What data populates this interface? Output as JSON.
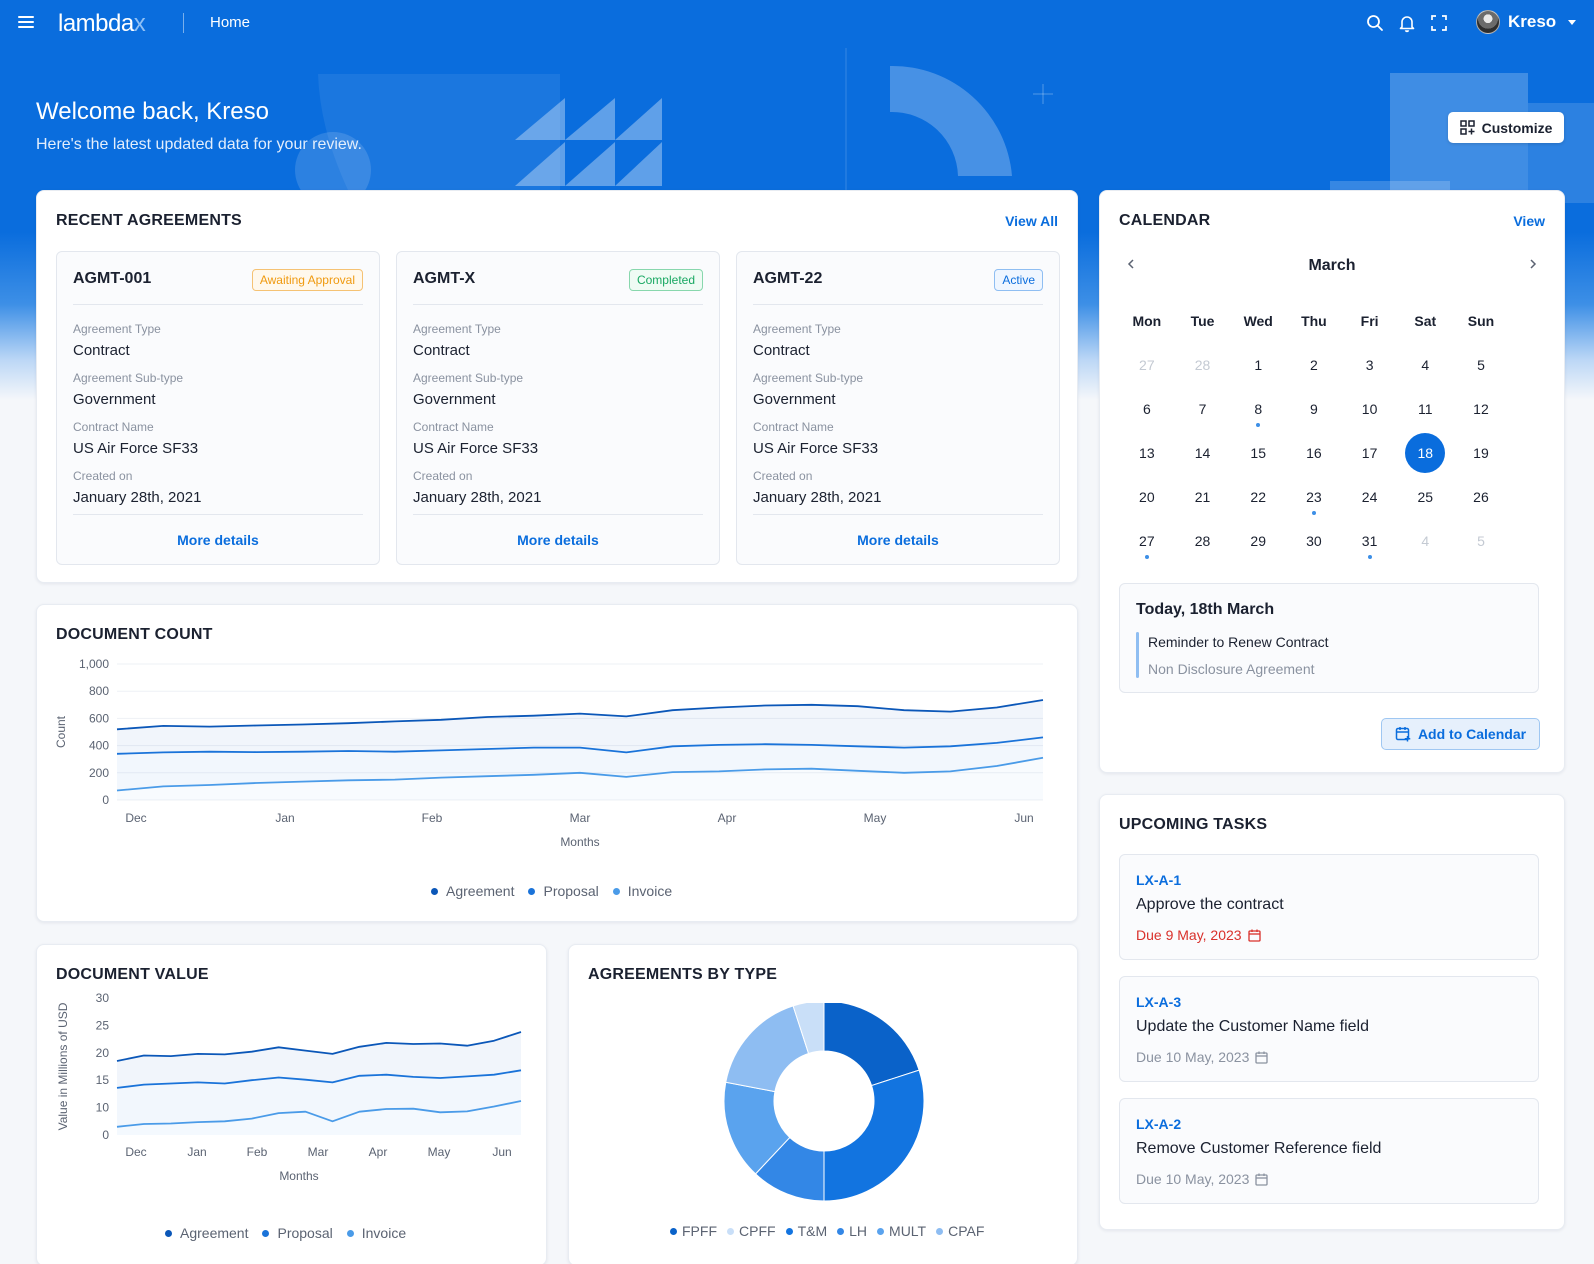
{
  "header": {
    "logo_main": "lambda",
    "logo_accent": "x",
    "nav_home": "Home",
    "user_name": "Kreso",
    "icons": [
      "menu-icon",
      "search-icon",
      "bell-icon",
      "fullscreen-icon",
      "avatar",
      "chevron-down-icon"
    ]
  },
  "welcome": {
    "title": "Welcome back, Kreso",
    "subtitle": "Here's the latest updated data for your review.",
    "customize_label": "Customize"
  },
  "recent_agreements": {
    "title": "RECENT AGREEMENTS",
    "view_all": "View All",
    "field_labels": {
      "type": "Agreement Type",
      "subtype": "Agreement Sub-type",
      "contract_name": "Contract Name",
      "created": "Created on"
    },
    "more_details": "More details",
    "items": [
      {
        "id": "AGMT-001",
        "status": "Awaiting Approval",
        "type": "Contract",
        "subtype": "Government",
        "contract_name": "US Air Force SF33",
        "created": "January 28th, 2021"
      },
      {
        "id": "AGMT-X",
        "status": "Completed",
        "type": "Contract",
        "subtype": "Government",
        "contract_name": "US Air Force SF33",
        "created": "January 28th, 2021"
      },
      {
        "id": "AGMT-22",
        "status": "Active",
        "type": "Contract",
        "subtype": "Government",
        "contract_name": "US Air Force SF33",
        "created": "January 28th, 2021"
      }
    ]
  },
  "calendar": {
    "title": "CALENDAR",
    "view": "View",
    "month": "March",
    "weekdays": [
      "Mon",
      "Tue",
      "Wed",
      "Thu",
      "Fri",
      "Sat",
      "Sun"
    ],
    "weeks": [
      [
        {
          "d": "27",
          "m": true
        },
        {
          "d": "28",
          "m": true
        },
        {
          "d": "1"
        },
        {
          "d": "2"
        },
        {
          "d": "3"
        },
        {
          "d": "4"
        },
        {
          "d": "5"
        }
      ],
      [
        {
          "d": "6"
        },
        {
          "d": "7"
        },
        {
          "d": "8",
          "ev": true
        },
        {
          "d": "9"
        },
        {
          "d": "10"
        },
        {
          "d": "11"
        },
        {
          "d": "12"
        }
      ],
      [
        {
          "d": "13"
        },
        {
          "d": "14"
        },
        {
          "d": "15"
        },
        {
          "d": "16"
        },
        {
          "d": "17"
        },
        {
          "d": "18",
          "today": true
        },
        {
          "d": "19"
        }
      ],
      [
        {
          "d": "20"
        },
        {
          "d": "21"
        },
        {
          "d": "22"
        },
        {
          "d": "23",
          "ev": true
        },
        {
          "d": "24"
        },
        {
          "d": "25"
        },
        {
          "d": "26"
        }
      ],
      [
        {
          "d": "27",
          "ev": true
        },
        {
          "d": "28"
        },
        {
          "d": "29"
        },
        {
          "d": "30"
        },
        {
          "d": "31",
          "ev": true
        },
        {
          "d": "4",
          "m": true
        },
        {
          "d": "5",
          "m": true
        }
      ]
    ],
    "today_title": "Today, 18th March",
    "today_event": "Reminder to Renew Contract",
    "today_event_sub": "Non Disclosure Agreement",
    "add_label": "Add to Calendar"
  },
  "tasks": {
    "title": "UPCOMING TASKS",
    "items": [
      {
        "id": "LX-A-1",
        "name": "Approve the contract",
        "due": "Due 9 May, 2023",
        "overdue": true
      },
      {
        "id": "LX-A-3",
        "name": "Update the Customer Name field",
        "due": "Due 10 May, 2023",
        "overdue": false
      },
      {
        "id": "LX-A-2",
        "name": "Remove Customer Reference field",
        "due": "Due 10 May, 2023",
        "overdue": false
      }
    ]
  },
  "colors": {
    "primary": "#0a6ddd",
    "agreement": "#0b57b8",
    "proposal": "#1a73d9",
    "invoice": "#4a9be8"
  },
  "chart_data": [
    {
      "type": "area",
      "title": "DOCUMENT COUNT",
      "xlabel": "Months",
      "ylabel": "Count",
      "x_ticks": [
        "Dec",
        "Jan",
        "Feb",
        "Mar",
        "Apr",
        "May",
        "Jun"
      ],
      "y_ticks": [
        "0",
        "200",
        "400",
        "600",
        "800",
        "1,000"
      ],
      "ylim": [
        0,
        1000
      ],
      "legend_position": "bottom",
      "series": [
        {
          "name": "Agreement",
          "color": "#0b57b8",
          "values": [
            520,
            545,
            540,
            548,
            555,
            565,
            578,
            590,
            610,
            620,
            635,
            615,
            660,
            680,
            695,
            700,
            690,
            660,
            650,
            680,
            735
          ]
        },
        {
          "name": "Proposal",
          "color": "#1a73d9",
          "values": [
            340,
            350,
            355,
            352,
            355,
            360,
            355,
            365,
            375,
            385,
            385,
            350,
            395,
            405,
            410,
            405,
            395,
            385,
            395,
            420,
            460
          ]
        },
        {
          "name": "Invoice",
          "color": "#4a9be8",
          "values": [
            70,
            100,
            110,
            125,
            135,
            145,
            150,
            165,
            175,
            185,
            200,
            170,
            205,
            210,
            225,
            230,
            215,
            200,
            210,
            250,
            310
          ]
        }
      ]
    },
    {
      "type": "area",
      "title": "DOCUMENT VALUE",
      "xlabel": "Months",
      "ylabel": "Value in Millions of USD",
      "x_ticks": [
        "Dec",
        "Jan",
        "Feb",
        "Mar",
        "Apr",
        "May",
        "Jun"
      ],
      "y_ticks": [
        "0",
        "10",
        "15",
        "20",
        "25",
        "30"
      ],
      "ylim": [
        0,
        30
      ],
      "legend_position": "bottom",
      "series": [
        {
          "name": "Agreement",
          "color": "#0b57b8",
          "values": [
            18.5,
            19.5,
            19.4,
            19.8,
            19.7,
            20.2,
            21.0,
            20.4,
            19.8,
            21.1,
            21.8,
            21.6,
            21.7,
            21.3,
            22.2,
            23.8
          ]
        },
        {
          "name": "Proposal",
          "color": "#1a73d9",
          "values": [
            13.6,
            14.2,
            14.4,
            14.6,
            14.4,
            15.0,
            15.5,
            15.1,
            14.6,
            15.8,
            16.0,
            15.6,
            15.4,
            15.7,
            16.0,
            16.8
          ]
        },
        {
          "name": "Invoice",
          "color": "#4a9be8",
          "values": [
            3.0,
            4.0,
            4.2,
            4.7,
            5.0,
            6.0,
            8.0,
            8.5,
            5.0,
            8.5,
            9.5,
            9.6,
            8.3,
            8.6,
            10.2,
            11.2
          ]
        }
      ]
    },
    {
      "type": "pie",
      "title": "AGREEMENTS BY TYPE",
      "legend_position": "bottom",
      "slices": [
        {
          "label": "FPFF",
          "value": 20,
          "color": "#0a62c9"
        },
        {
          "label": "T&M",
          "value": 30,
          "color": "#1274e0"
        },
        {
          "label": "LH",
          "value": 12,
          "color": "#3387e6"
        },
        {
          "label": "MULT",
          "value": 16,
          "color": "#5aa3ee"
        },
        {
          "label": "CPAF",
          "value": 17,
          "color": "#8ebdf2"
        },
        {
          "label": "CPFF",
          "value": 5,
          "color": "#c9dff8"
        }
      ],
      "legend_order": [
        "FPFF",
        "CPFF",
        "T&M",
        "LH",
        "MULT",
        "CPAF"
      ]
    }
  ]
}
